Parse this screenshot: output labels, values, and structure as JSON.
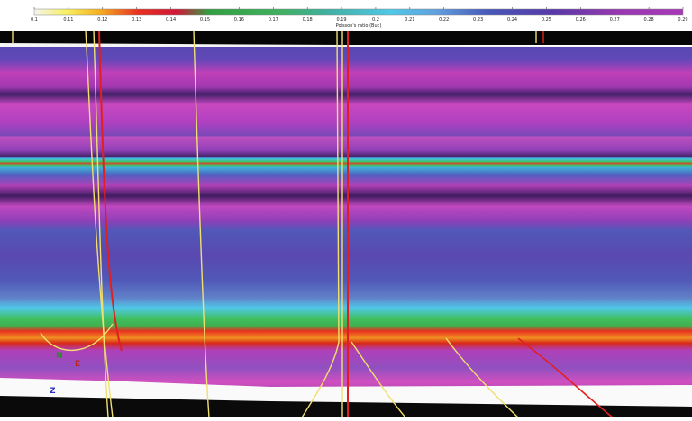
{
  "colorbar": {
    "ticks": [
      0.1,
      0.11,
      0.12,
      0.13,
      0.14,
      0.15,
      0.16,
      0.17,
      0.18,
      0.19,
      0.2,
      0.21,
      0.22,
      0.23,
      0.24,
      0.25,
      0.26,
      0.27,
      0.28,
      0.29
    ],
    "label": "Poisson's ratio (Buc)"
  },
  "axes": {
    "north": "N",
    "east": "E",
    "down": "Z"
  }
}
